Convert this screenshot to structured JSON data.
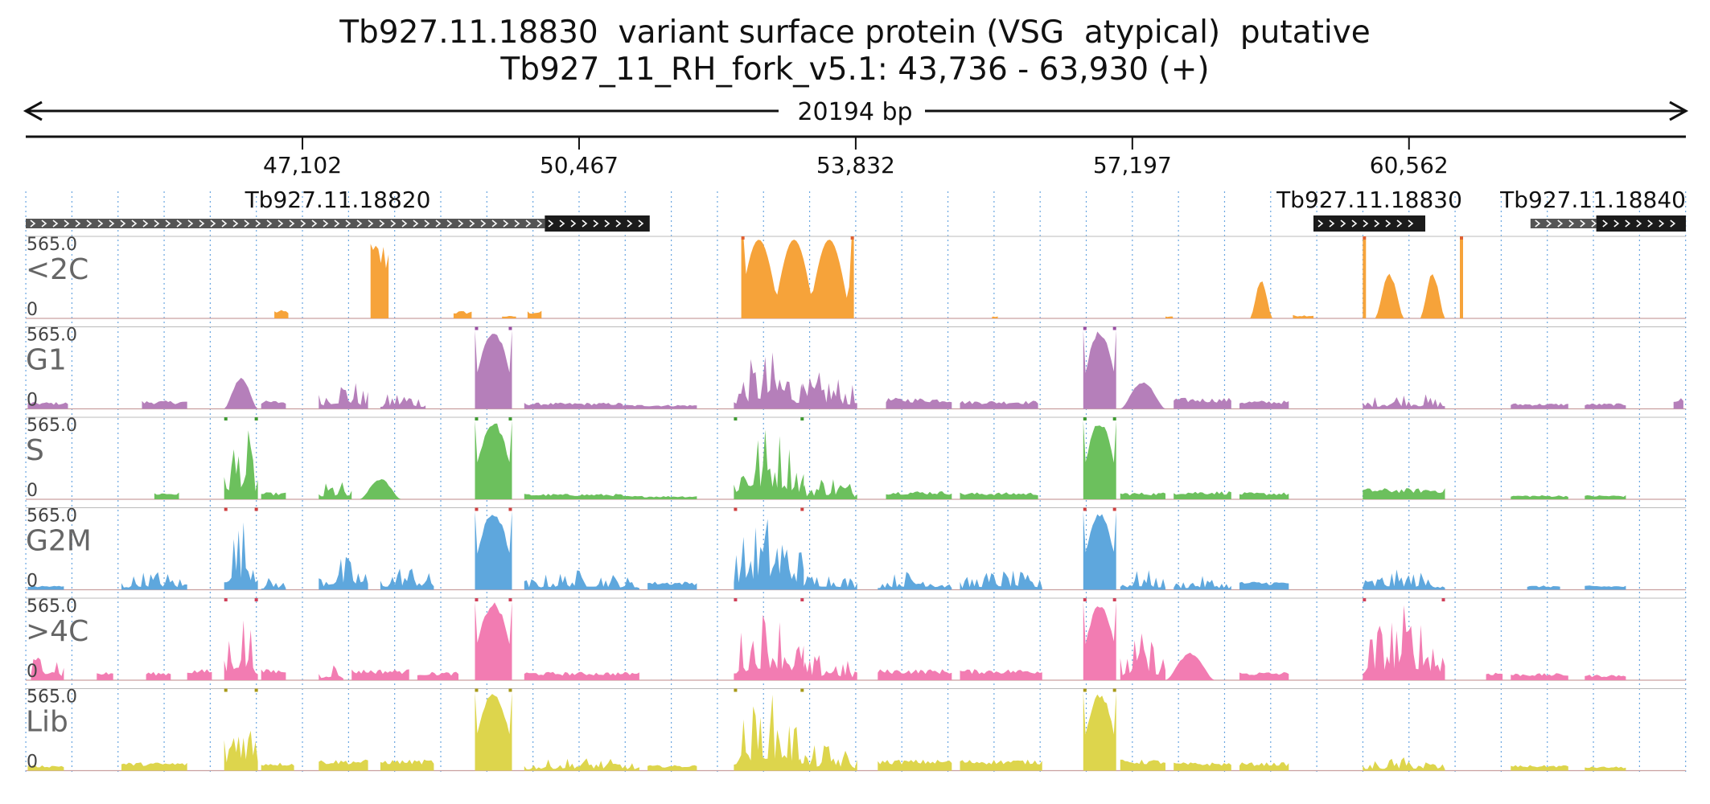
{
  "title": "Tb927.11.18830  variant surface protein (VSG  atypical)  putative",
  "subtitle": "Tb927_11_RH_fork_v5.1: 43,736 - 63,930 (+)",
  "span_label": "20194 bp",
  "chart_data": {
    "type": "area",
    "region": {
      "chrom": "Tb927_11_RH_fork_v5.1",
      "start": 43736,
      "end": 63930,
      "strand": "+"
    },
    "x_ticks": [
      47102,
      50467,
      53832,
      57197,
      60562
    ],
    "x_tick_labels": [
      "47,102",
      "50,467",
      "53,832",
      "57,197",
      "60,562"
    ],
    "genes": [
      {
        "name": "Tb927.11.18820",
        "label": "Tb927.11.18820",
        "start": 43736,
        "end": 51326,
        "cds_start": 50050,
        "cds_end": 51326
      },
      {
        "name": "Tb927.11.18830",
        "label": "Tb927.11.18830",
        "start": 59400,
        "end": 60760,
        "cds_start": 59400,
        "cds_end": 60760
      },
      {
        "name": "Tb927.11.18840",
        "label": "Tb927.11.18840",
        "start": 62040,
        "end": 63930,
        "cds_start": 62840,
        "cds_end": 63930
      }
    ],
    "tracks": [
      {
        "name": "<2C",
        "label": "<2C",
        "color": "#f6a33a",
        "clip_color": "#e06030",
        "scale_max": "565.0",
        "scale_min": "0",
        "peaks": [
          [
            46760,
            46930,
            60,
            "flat"
          ],
          [
            47930,
            48150,
            565,
            "flat"
          ],
          [
            48940,
            49160,
            55,
            "flat"
          ],
          [
            49530,
            49700,
            18,
            "flat"
          ],
          [
            49840,
            50010,
            55,
            "flat"
          ],
          [
            52440,
            53810,
            565,
            "clip"
          ],
          [
            55490,
            55560,
            15,
            "flat"
          ],
          [
            57600,
            57690,
            15,
            "flat"
          ],
          [
            58630,
            58900,
            280,
            "mound"
          ],
          [
            59150,
            59400,
            25,
            "flat"
          ],
          [
            60150,
            60500,
            330,
            "mound"
          ],
          [
            60700,
            61000,
            330,
            "mound"
          ],
          [
            60000,
            61220,
            565,
            "walls"
          ]
        ]
      },
      {
        "name": "G1",
        "label": "G1",
        "color": "#b57fba",
        "clip_color": "#9a4fa3",
        "scale_max": "565.0",
        "scale_min": "0",
        "peaks": [
          [
            43760,
            44250,
            50,
            "flat"
          ],
          [
            45150,
            45700,
            60,
            "flat"
          ],
          [
            46150,
            46560,
            230,
            "mound"
          ],
          [
            46600,
            46900,
            60,
            "flat"
          ],
          [
            47300,
            47900,
            250,
            "spiky"
          ],
          [
            48050,
            48600,
            150,
            "spiky"
          ],
          [
            49200,
            49650,
            565,
            "wall"
          ],
          [
            49800,
            51000,
            45,
            "flat"
          ],
          [
            51000,
            51900,
            30,
            "flat"
          ],
          [
            52350,
            53200,
            430,
            "spiky"
          ],
          [
            53100,
            53850,
            280,
            "spiky"
          ],
          [
            54200,
            55000,
            80,
            "flat"
          ],
          [
            55100,
            56050,
            60,
            "flat"
          ],
          [
            56600,
            57000,
            565,
            "wall"
          ],
          [
            57050,
            57600,
            200,
            "mound"
          ],
          [
            57700,
            58400,
            80,
            "flat"
          ],
          [
            58500,
            59100,
            60,
            "flat"
          ],
          [
            60000,
            61000,
            130,
            "spiky"
          ],
          [
            61800,
            62500,
            40,
            "flat"
          ],
          [
            62700,
            63200,
            40,
            "flat"
          ],
          [
            63780,
            63900,
            80,
            "flat"
          ]
        ]
      },
      {
        "name": "S",
        "label": "S",
        "color": "#6cc05d",
        "clip_color": "#3f9a31",
        "scale_max": "565.0",
        "scale_min": "0",
        "peaks": [
          [
            45300,
            45600,
            50,
            "flat"
          ],
          [
            46150,
            46560,
            565,
            "spiky"
          ],
          [
            46600,
            46900,
            50,
            "flat"
          ],
          [
            47300,
            47700,
            150,
            "spiky"
          ],
          [
            47800,
            48300,
            150,
            "mound"
          ],
          [
            49200,
            49650,
            565,
            "wall"
          ],
          [
            49800,
            51000,
            40,
            "flat"
          ],
          [
            51000,
            51900,
            25,
            "flat"
          ],
          [
            52350,
            53200,
            565,
            "spiky"
          ],
          [
            53150,
            53850,
            200,
            "spiky"
          ],
          [
            54200,
            55000,
            60,
            "flat"
          ],
          [
            55100,
            56050,
            50,
            "flat"
          ],
          [
            56600,
            57000,
            565,
            "wall"
          ],
          [
            57050,
            57600,
            50,
            "flat"
          ],
          [
            57700,
            58400,
            60,
            "flat"
          ],
          [
            58500,
            59100,
            50,
            "flat"
          ],
          [
            60000,
            61000,
            80,
            "flat"
          ],
          [
            61800,
            62500,
            30,
            "flat"
          ],
          [
            62700,
            63200,
            30,
            "flat"
          ]
        ]
      },
      {
        "name": "G2M",
        "label": "G2M",
        "color": "#5ea7dd",
        "clip_color": "#d04040",
        "scale_max": "565.0",
        "scale_min": "0",
        "peaks": [
          [
            43760,
            44200,
            30,
            "flat"
          ],
          [
            44900,
            45700,
            150,
            "spiky"
          ],
          [
            46150,
            46560,
            565,
            "spiky"
          ],
          [
            46600,
            46900,
            100,
            "spiky"
          ],
          [
            47300,
            47900,
            250,
            "spiky"
          ],
          [
            48050,
            48700,
            200,
            "spiky"
          ],
          [
            49200,
            49650,
            565,
            "wall"
          ],
          [
            49800,
            51200,
            150,
            "spiky"
          ],
          [
            51300,
            51900,
            60,
            "flat"
          ],
          [
            52350,
            53200,
            565,
            "spiky"
          ],
          [
            53100,
            53850,
            150,
            "spiky"
          ],
          [
            54100,
            55000,
            150,
            "spiky"
          ],
          [
            55100,
            56100,
            150,
            "spiky"
          ],
          [
            56600,
            57000,
            565,
            "wall"
          ],
          [
            57050,
            57600,
            150,
            "spiky"
          ],
          [
            57700,
            58400,
            100,
            "spiky"
          ],
          [
            58500,
            59100,
            60,
            "flat"
          ],
          [
            60000,
            61000,
            150,
            "spiky"
          ],
          [
            62000,
            62400,
            30,
            "flat"
          ],
          [
            62700,
            63200,
            30,
            "flat"
          ]
        ]
      },
      {
        "name": ">4C",
        "label": ">4C",
        "color": "#f27cb2",
        "clip_color": "#d0405a",
        "scale_max": "565.0",
        "scale_min": "0",
        "peaks": [
          [
            43800,
            44200,
            300,
            "spiky"
          ],
          [
            44600,
            44800,
            60,
            "flat"
          ],
          [
            45200,
            45500,
            60,
            "flat"
          ],
          [
            45700,
            46000,
            80,
            "flat"
          ],
          [
            46150,
            46560,
            565,
            "spiky"
          ],
          [
            46600,
            46900,
            80,
            "flat"
          ],
          [
            47300,
            47600,
            150,
            "spiky"
          ],
          [
            47700,
            48400,
            80,
            "flat"
          ],
          [
            48500,
            49000,
            60,
            "flat"
          ],
          [
            49200,
            49650,
            565,
            "wall"
          ],
          [
            49800,
            51200,
            60,
            "flat"
          ],
          [
            52350,
            53200,
            565,
            "spiky"
          ],
          [
            53100,
            53850,
            200,
            "spiky"
          ],
          [
            54100,
            55000,
            80,
            "flat"
          ],
          [
            55100,
            56100,
            80,
            "flat"
          ],
          [
            56600,
            57000,
            565,
            "wall"
          ],
          [
            57050,
            57600,
            350,
            "spiky"
          ],
          [
            57600,
            58200,
            200,
            "mound"
          ],
          [
            58500,
            59100,
            60,
            "flat"
          ],
          [
            60000,
            61000,
            565,
            "spiky"
          ],
          [
            61500,
            61700,
            60,
            "flat"
          ],
          [
            61800,
            62500,
            50,
            "flat"
          ],
          [
            62700,
            63200,
            40,
            "flat"
          ]
        ]
      },
      {
        "name": "Lib",
        "label": "Lib",
        "color": "#ddd54c",
        "clip_color": "#a89a18",
        "scale_max": "565.0",
        "scale_min": "0",
        "peaks": [
          [
            43760,
            44200,
            40,
            "flat"
          ],
          [
            44900,
            45700,
            60,
            "flat"
          ],
          [
            46150,
            46560,
            565,
            "spiky"
          ],
          [
            46600,
            47000,
            60,
            "flat"
          ],
          [
            47300,
            47900,
            80,
            "flat"
          ],
          [
            48050,
            48700,
            80,
            "flat"
          ],
          [
            49200,
            49650,
            565,
            "wall"
          ],
          [
            49800,
            51200,
            100,
            "spiky"
          ],
          [
            51300,
            51900,
            40,
            "flat"
          ],
          [
            52350,
            53200,
            565,
            "spiky"
          ],
          [
            53100,
            53850,
            200,
            "spiky"
          ],
          [
            54100,
            55000,
            80,
            "flat"
          ],
          [
            55100,
            56100,
            80,
            "flat"
          ],
          [
            56600,
            57000,
            565,
            "wall"
          ],
          [
            57050,
            57600,
            80,
            "flat"
          ],
          [
            57700,
            58400,
            60,
            "flat"
          ],
          [
            58500,
            59100,
            60,
            "flat"
          ],
          [
            60000,
            61000,
            100,
            "spiky"
          ],
          [
            61800,
            62500,
            40,
            "flat"
          ],
          [
            62700,
            63200,
            30,
            "flat"
          ]
        ]
      }
    ]
  }
}
